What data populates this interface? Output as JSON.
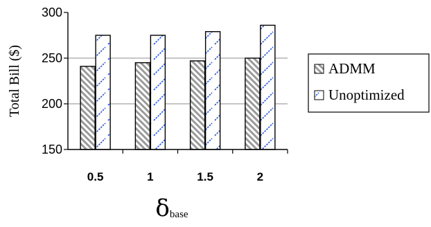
{
  "chart_data": {
    "type": "bar",
    "categories": [
      "0.5",
      "1",
      "1.5",
      "2"
    ],
    "series": [
      {
        "name": "ADMM",
        "values": [
          241,
          245,
          247,
          250
        ],
        "color": "#9a9a9a",
        "pattern": "diagonal-gray"
      },
      {
        "name": "Unoptimized",
        "values": [
          275,
          275,
          279,
          286
        ],
        "color": "#2255dd",
        "pattern": "diagonal-blue"
      }
    ],
    "ylabel": "Total Bill ($)",
    "xlabel_main": "δ",
    "xlabel_sub": "base",
    "ylim": [
      150,
      300
    ],
    "yticks": [
      "150",
      "200",
      "250",
      "300"
    ],
    "grid": true,
    "legend_position": "right"
  }
}
